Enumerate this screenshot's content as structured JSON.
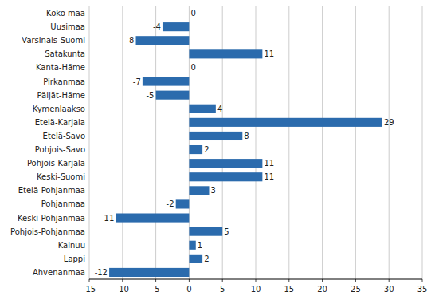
{
  "chart_data": {
    "type": "bar",
    "orientation": "horizontal",
    "categories": [
      "Koko maa",
      "Uusimaa",
      "Varsinais-Suomi",
      "Satakunta",
      "Kanta-Häme",
      "Pirkanmaa",
      "Päijät-Häme",
      "Kymenlaakso",
      "Etelä-Karjala",
      "Etelä-Savo",
      "Pohjois-Savo",
      "Pohjois-Karjala",
      "Keski-Suomi",
      "Etelä-Pohjanmaa",
      "Pohjanmaa",
      "Keski-Pohjanmaa",
      "Pohjois-Pohjanmaa",
      "Kainuu",
      "Lappi",
      "Ahvenanmaa"
    ],
    "values": [
      0,
      -4,
      -8,
      11,
      0,
      -7,
      -5,
      4,
      29,
      8,
      2,
      11,
      11,
      3,
      -2,
      -11,
      5,
      1,
      2,
      -12
    ],
    "color": "#2B6BAD",
    "xlim": [
      -15,
      35
    ],
    "xticks": [
      -15,
      -10,
      -5,
      0,
      5,
      10,
      15,
      20,
      25,
      30,
      35
    ],
    "grid": true,
    "data_labels": true
  }
}
